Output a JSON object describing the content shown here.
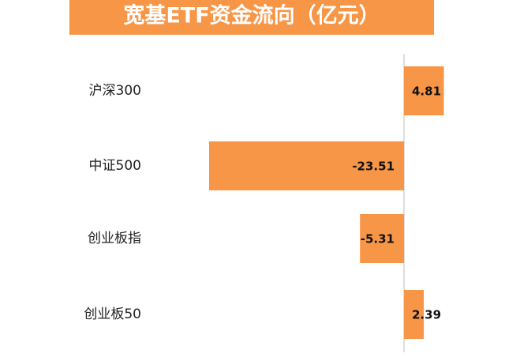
{
  "chart_data": {
    "type": "hbar",
    "title": "宽基ETF资金流向（亿元）",
    "categories": [
      "沪深300",
      "中证500",
      "创业板指",
      "创业板50"
    ],
    "values": [
      4.81,
      -23.51,
      -5.31,
      2.39
    ],
    "color": "#f79646"
  }
}
